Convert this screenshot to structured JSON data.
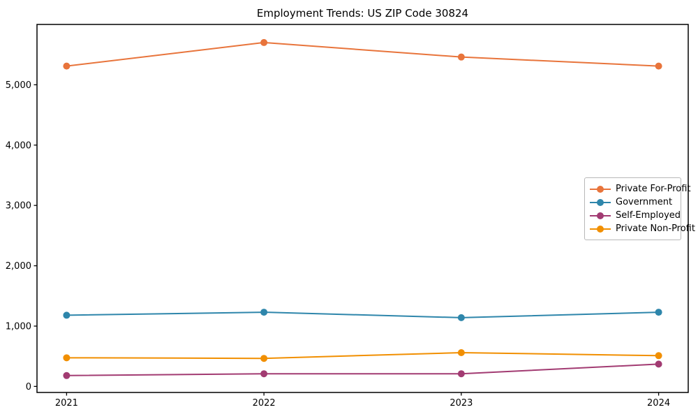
{
  "chart_data": {
    "type": "line",
    "title": "Employment Trends: US ZIP Code 30824",
    "x": [
      2021,
      2022,
      2023,
      2024
    ],
    "x_tick_labels": [
      "2021",
      "2022",
      "2023",
      "2024"
    ],
    "series": [
      {
        "name": "Private For-Profit",
        "color": "#E8743B",
        "values": [
          5310,
          5700,
          5460,
          5310
        ]
      },
      {
        "name": "Government",
        "color": "#2E86AB",
        "values": [
          1180,
          1230,
          1140,
          1230
        ]
      },
      {
        "name": "Self-Employed",
        "color": "#A23B72",
        "values": [
          180,
          210,
          210,
          370
        ]
      },
      {
        "name": "Private Non-Profit",
        "color": "#F18F01",
        "values": [
          475,
          465,
          560,
          510
        ]
      }
    ],
    "yticks": [
      0,
      1000,
      2000,
      3000,
      4000,
      5000
    ],
    "ytick_labels": [
      "0",
      "1,000",
      "2,000",
      "3,000",
      "4,000",
      "5,000"
    ],
    "ylim": [
      -100,
      6000
    ],
    "xlim": [
      2020.85,
      2024.15
    ],
    "grid": false,
    "legend": {
      "position": "center-right",
      "entries": [
        "Private For-Profit",
        "Government",
        "Self-Employed",
        "Private Non-Profit"
      ]
    },
    "marker": "circle",
    "axes_color": "#000000",
    "background_color": "#ffffff"
  }
}
